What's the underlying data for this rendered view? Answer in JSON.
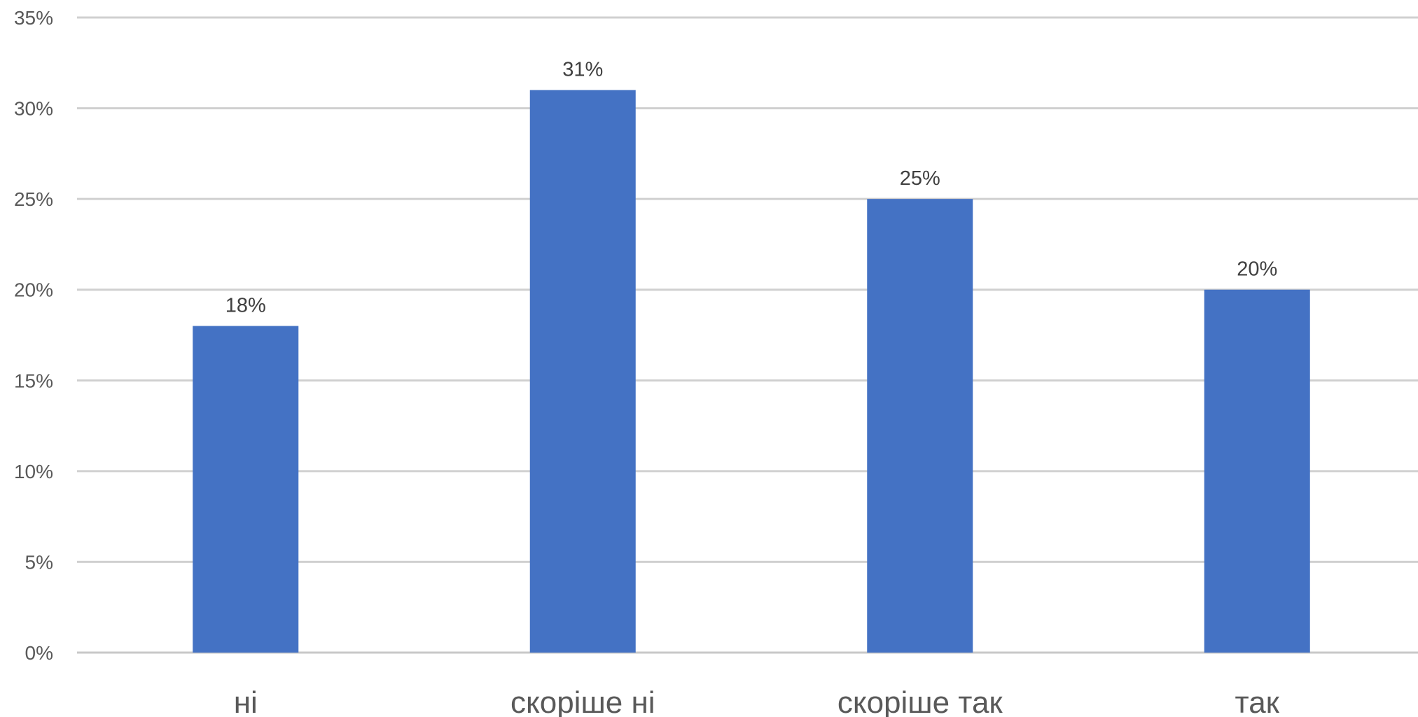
{
  "chart_data": {
    "type": "bar",
    "categories": [
      "ні",
      "скоріше ні",
      "скоріше так",
      "так"
    ],
    "values": [
      18,
      31,
      25,
      20
    ],
    "data_labels": [
      "18%",
      "31%",
      "25%",
      "20%"
    ],
    "y_ticks": [
      0,
      5,
      10,
      15,
      20,
      25,
      30,
      35
    ],
    "y_tick_labels": [
      "0%",
      "5%",
      "10%",
      "15%",
      "20%",
      "25%",
      "30%",
      "35%"
    ],
    "ylim": [
      0,
      35
    ],
    "unit": "%",
    "grid": true,
    "legend": "none",
    "bar_color": "#4472C4",
    "grid_color": "#D0D0D0"
  }
}
